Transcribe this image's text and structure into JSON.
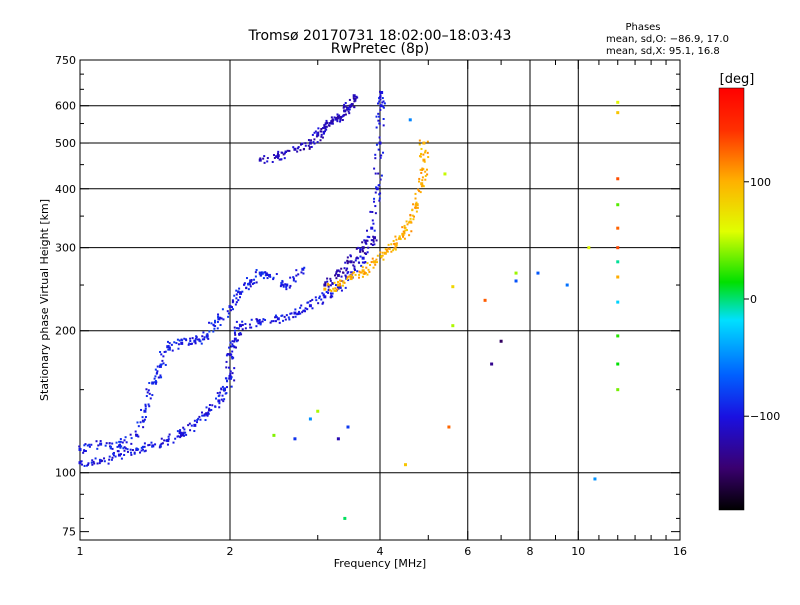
{
  "chart_data": {
    "type": "scatter",
    "title": "Tromsø 20170731 18:02:00–18:03:43",
    "subtitle": "RwPretec (8p)",
    "xlabel": "Frequency [MHz]",
    "ylabel": "Stationary phase Virtual Height [km]",
    "x_scale": "log",
    "y_scale": "log",
    "xlim": [
      1,
      16
    ],
    "ylim": [
      72,
      750
    ],
    "x_ticks": [
      1,
      2,
      4,
      6,
      8,
      10,
      16
    ],
    "x_tick_labels": [
      "1",
      "2",
      "4",
      "6",
      "8",
      "10",
      "16"
    ],
    "x_minor_ticks": [
      3,
      5,
      7,
      9,
      11,
      12,
      13,
      14,
      15
    ],
    "x_gridlines": [
      2,
      4,
      6,
      8,
      10
    ],
    "y_ticks": [
      75,
      100,
      200,
      300,
      400,
      500,
      600,
      750
    ],
    "y_tick_labels": [
      "75",
      "100",
      "200",
      "300",
      "400",
      "500",
      "600",
      "750"
    ],
    "y_gridlines": [
      100,
      200,
      300,
      400,
      500,
      600
    ],
    "grid": true,
    "phase_info": {
      "title": "Phases",
      "line_o": "mean, sd,O: −86.9, 17.0",
      "line_x": "mean, sd,X:  95.1, 16.8"
    },
    "colorbar": {
      "label": "[deg]",
      "range": [
        -180,
        180
      ],
      "ticks": [
        100,
        0,
        -100
      ],
      "tick_labels": [
        "100",
        "0",
        "−100"
      ]
    },
    "series": [
      {
        "name": "O-mode main trace (blue, ~ -100 deg)",
        "phase_deg": -100,
        "points": [
          [
            1.0,
            105
          ],
          [
            1.1,
            106
          ],
          [
            1.2,
            109
          ],
          [
            1.3,
            112
          ],
          [
            1.4,
            114
          ],
          [
            1.5,
            117
          ],
          [
            1.6,
            121
          ],
          [
            1.7,
            126
          ],
          [
            1.8,
            133
          ],
          [
            1.9,
            142
          ],
          [
            1.95,
            150
          ],
          [
            2.0,
            160
          ],
          [
            2.0,
            178
          ],
          [
            2.05,
            192
          ],
          [
            2.1,
            205
          ],
          [
            2.3,
            208
          ],
          [
            2.5,
            212
          ],
          [
            2.7,
            218
          ],
          [
            2.9,
            226
          ],
          [
            3.1,
            236
          ],
          [
            3.3,
            248
          ],
          [
            3.5,
            262
          ],
          [
            3.7,
            285
          ],
          [
            3.85,
            330
          ],
          [
            3.95,
            400
          ],
          [
            4.0,
            500
          ],
          [
            4.02,
            600
          ],
          [
            4.03,
            640
          ]
        ]
      },
      {
        "name": "Low frequency spread (blue)",
        "phase_deg": -95,
        "points": [
          [
            1.0,
            112
          ],
          [
            1.1,
            115
          ],
          [
            1.2,
            114
          ],
          [
            1.3,
            120
          ],
          [
            1.35,
            135
          ],
          [
            1.4,
            155
          ],
          [
            1.45,
            168
          ],
          [
            1.5,
            185
          ],
          [
            1.6,
            188
          ],
          [
            1.7,
            190
          ],
          [
            1.8,
            195
          ],
          [
            1.9,
            212
          ],
          [
            2.0,
            225
          ],
          [
            2.1,
            240
          ],
          [
            2.2,
            255
          ],
          [
            2.3,
            265
          ],
          [
            2.4,
            262
          ],
          [
            2.6,
            250
          ],
          [
            2.8,
            270
          ]
        ]
      },
      {
        "name": "E/F1 upper trace (dark blue)",
        "phase_deg": -115,
        "points": [
          [
            2.3,
            460
          ],
          [
            2.5,
            470
          ],
          [
            2.7,
            485
          ],
          [
            2.9,
            500
          ],
          [
            3.0,
            520
          ],
          [
            3.1,
            540
          ],
          [
            3.2,
            555
          ],
          [
            3.3,
            565
          ],
          [
            3.4,
            585
          ],
          [
            3.5,
            600
          ],
          [
            3.55,
            630
          ]
        ]
      },
      {
        "name": "X-mode trace (yellow, ~ +100 deg)",
        "phase_deg": 100,
        "points": [
          [
            3.1,
            245
          ],
          [
            3.3,
            250
          ],
          [
            3.5,
            258
          ],
          [
            3.7,
            268
          ],
          [
            3.9,
            280
          ],
          [
            4.1,
            292
          ],
          [
            4.3,
            305
          ],
          [
            4.45,
            320
          ],
          [
            4.6,
            340
          ],
          [
            4.75,
            370
          ],
          [
            4.85,
            410
          ],
          [
            4.9,
            460
          ],
          [
            4.9,
            500
          ]
        ]
      },
      {
        "name": "Purple echoes (~ -120 deg)",
        "phase_deg": -120,
        "points": [
          [
            3.1,
            250
          ],
          [
            3.3,
            262
          ],
          [
            3.5,
            280
          ],
          [
            3.7,
            300
          ],
          [
            3.9,
            315
          ]
        ]
      },
      {
        "name": "Scattered echoes (mixed)",
        "phase_deg": 0,
        "points": [
          [
            2.45,
            120
          ],
          [
            2.7,
            118
          ],
          [
            2.9,
            130
          ],
          [
            3.0,
            135
          ],
          [
            3.3,
            118
          ],
          [
            3.45,
            125
          ],
          [
            3.4,
            80
          ],
          [
            5.4,
            430
          ],
          [
            5.6,
            248
          ],
          [
            5.6,
            205
          ],
          [
            5.5,
            125
          ],
          [
            4.5,
            104
          ],
          [
            6.5,
            232
          ],
          [
            6.7,
            170
          ],
          [
            7.0,
            190
          ],
          [
            7.5,
            265
          ],
          [
            7.5,
            255
          ],
          [
            8.3,
            265
          ],
          [
            9.5,
            250
          ],
          [
            10.5,
            300
          ],
          [
            10.8,
            97
          ],
          [
            12.0,
            610
          ],
          [
            12.0,
            580
          ],
          [
            12.0,
            420
          ],
          [
            12.0,
            370
          ],
          [
            12.0,
            330
          ],
          [
            12.0,
            300
          ],
          [
            12.0,
            280
          ],
          [
            12.0,
            260
          ],
          [
            12.0,
            230
          ],
          [
            12.0,
            195
          ],
          [
            12.0,
            170
          ],
          [
            12.0,
            150
          ],
          [
            4.6,
            560
          ]
        ]
      }
    ]
  }
}
